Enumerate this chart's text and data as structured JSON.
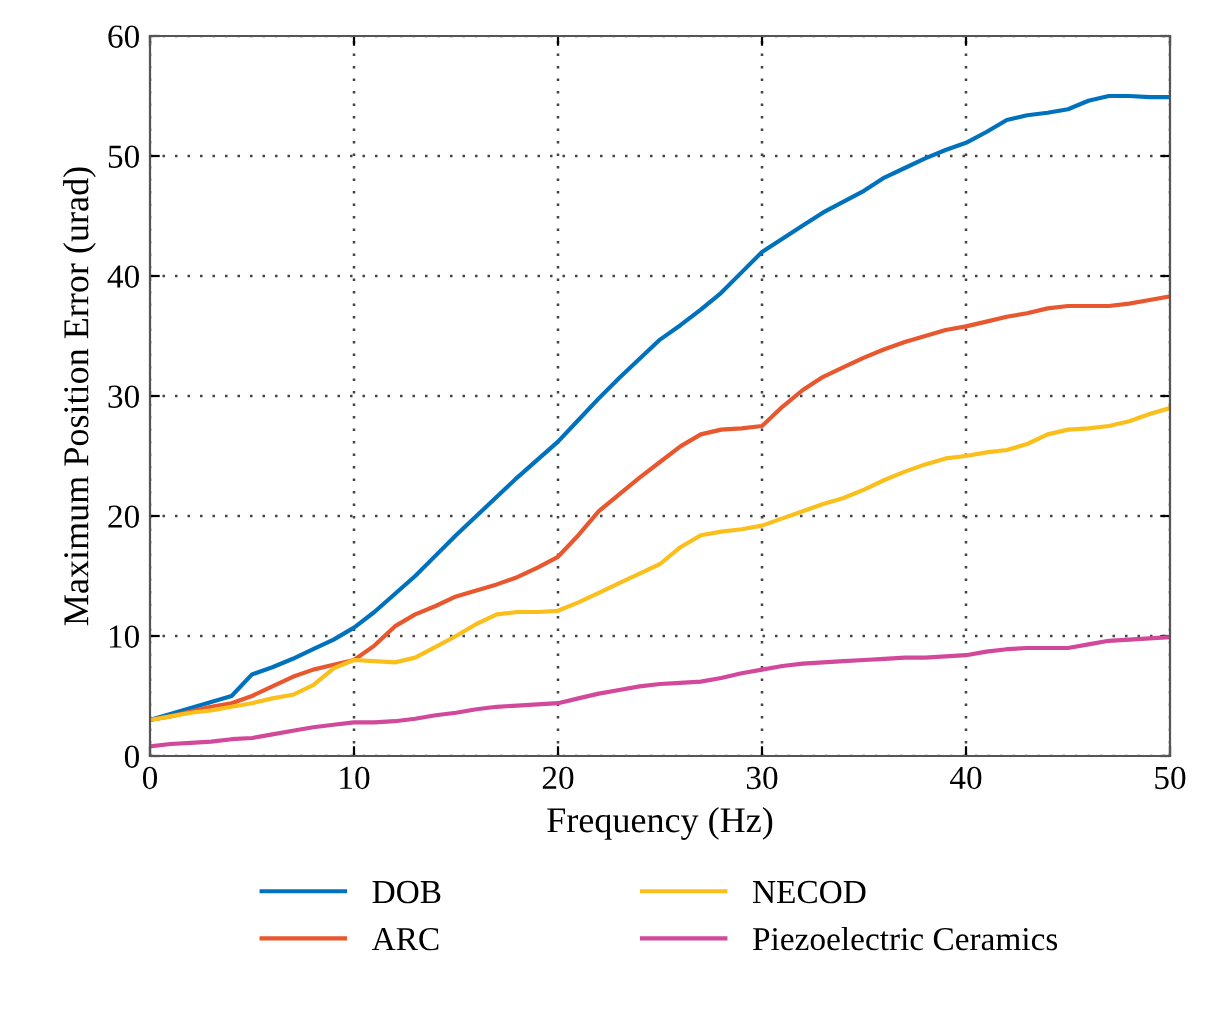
{
  "chart_data": {
    "type": "line",
    "xlabel": "Frequency (Hz)",
    "ylabel": "Maximum Position Error (urad)",
    "x": [
      0,
      1,
      2,
      3,
      4,
      5,
      6,
      7,
      8,
      9,
      10,
      11,
      12,
      13,
      14,
      15,
      16,
      17,
      18,
      19,
      20,
      21,
      22,
      23,
      24,
      25,
      26,
      27,
      28,
      29,
      30,
      31,
      32,
      33,
      34,
      35,
      36,
      37,
      38,
      39,
      40,
      41,
      42,
      43,
      44,
      45,
      46,
      47,
      48,
      49,
      50
    ],
    "series": [
      {
        "name": "DOB",
        "color": "#0072bd",
        "values": [
          3,
          3.5,
          4,
          4.5,
          5,
          6.8,
          7.4,
          8.1,
          8.9,
          9.7,
          10.7,
          12,
          13.5,
          15,
          16.7,
          18.4,
          20,
          21.6,
          23.2,
          24.7,
          26.2,
          28,
          29.8,
          31.5,
          33.1,
          34.7,
          35.9,
          37.2,
          38.6,
          40.3,
          42,
          43.1,
          44.2,
          45.3,
          46.2,
          47.1,
          48.2,
          49,
          49.8,
          50.5,
          51.1,
          52,
          53,
          53.4,
          53.6,
          53.9,
          54.6,
          55,
          55,
          54.9,
          54.9
        ]
      },
      {
        "name": "ARC",
        "color": "#e8572d",
        "values": [
          3,
          3.3,
          3.7,
          4.1,
          4.4,
          5,
          5.8,
          6.6,
          7.2,
          7.6,
          8,
          9.2,
          10.8,
          11.8,
          12.5,
          13.3,
          13.8,
          14.3,
          14.9,
          15.7,
          16.6,
          18.4,
          20.4,
          21.8,
          23.2,
          24.5,
          25.8,
          26.8,
          27.2,
          27.3,
          27.5,
          29.1,
          30.5,
          31.6,
          32.4,
          33.2,
          33.9,
          34.5,
          35,
          35.5,
          35.8,
          36.2,
          36.6,
          36.9,
          37.3,
          37.5,
          37.5,
          37.5,
          37.7,
          38,
          38.3
        ]
      },
      {
        "name": "NECOD",
        "color": "#fbbf1c",
        "values": [
          3,
          3.3,
          3.6,
          3.8,
          4.1,
          4.4,
          4.8,
          5.1,
          5.9,
          7.3,
          8,
          7.9,
          7.8,
          8.2,
          9.1,
          10,
          11,
          11.8,
          12,
          12,
          12.1,
          12.8,
          13.6,
          14.4,
          15.2,
          16,
          17.4,
          18.4,
          18.7,
          18.9,
          19.2,
          19.8,
          20.4,
          21,
          21.5,
          22.2,
          23,
          23.7,
          24.3,
          24.8,
          25,
          25.3,
          25.5,
          26,
          26.8,
          27.2,
          27.3,
          27.5,
          27.9,
          28.5,
          29
        ]
      },
      {
        "name": "Piezoelectric Ceramics",
        "color": "#d2489b",
        "values": [
          0.8,
          1,
          1.1,
          1.2,
          1.4,
          1.5,
          1.8,
          2.1,
          2.4,
          2.6,
          2.8,
          2.8,
          2.9,
          3.1,
          3.4,
          3.6,
          3.9,
          4.1,
          4.2,
          4.3,
          4.4,
          4.8,
          5.2,
          5.5,
          5.8,
          6,
          6.1,
          6.2,
          6.5,
          6.9,
          7.2,
          7.5,
          7.7,
          7.8,
          7.9,
          8,
          8.1,
          8.2,
          8.2,
          8.3,
          8.4,
          8.7,
          8.9,
          9,
          9,
          9,
          9.3,
          9.6,
          9.7,
          9.8,
          9.9
        ]
      }
    ],
    "xlim": [
      0,
      50
    ],
    "ylim": [
      0,
      60
    ],
    "xticks": [
      0,
      10,
      20,
      30,
      40,
      50
    ],
    "yticks": [
      0,
      10,
      20,
      30,
      40,
      50,
      60
    ],
    "grid": true,
    "legend": "bottom",
    "line_style": "solid",
    "marker": "none"
  }
}
